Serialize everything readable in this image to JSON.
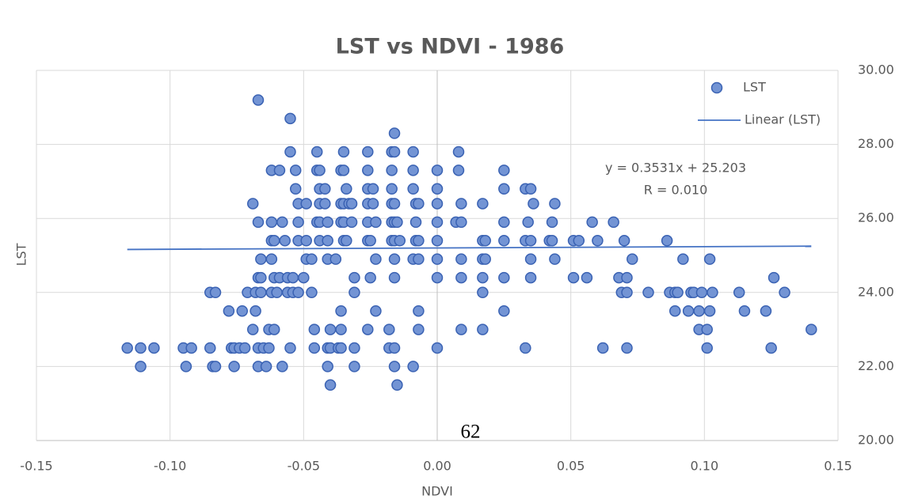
{
  "chart_data": {
    "type": "scatter",
    "title": "LST vs NDVI - 1986",
    "x_label": "NDVI",
    "y_label": "LST",
    "xlim": [
      -0.15,
      0.15
    ],
    "xticks": [
      -0.15,
      {
        "value": -0.1,
        "label": "-0.10"
      },
      -0.05,
      {
        "value": 0,
        "label": "0.00"
      },
      0.05,
      {
        "value": 0.1,
        "label": "0.10"
      },
      0.15
    ],
    "ylim": [
      20,
      30
    ],
    "yticks": [
      {
        "value": 20,
        "label": "20.00"
      },
      {
        "value": 22,
        "label": "22.00"
      },
      {
        "value": 24,
        "label": "24.00"
      },
      {
        "value": 26,
        "label": "26.00"
      },
      {
        "value": 28,
        "label": "28.00"
      },
      {
        "value": 30,
        "label": "30.00"
      }
    ],
    "y_axis_side": "right",
    "grid": true,
    "legend": "top-right",
    "annotations": [
      "y = 0.3531x + 25.203",
      "R = 0.010"
    ],
    "series": [
      {
        "name": "LST",
        "type": "scatter",
        "color": "#7394d4",
        "x": [
          -0.111,
          -0.094,
          -0.084,
          -0.083,
          -0.076,
          -0.067,
          -0.064,
          -0.058,
          -0.041,
          -0.031,
          -0.016,
          -0.009,
          -0.04,
          -0.015,
          -0.116,
          -0.111,
          -0.106,
          -0.095,
          -0.092,
          -0.085,
          -0.077,
          -0.076,
          -0.074,
          -0.072,
          -0.067,
          -0.065,
          -0.063,
          -0.055,
          -0.046,
          -0.041,
          -0.04,
          -0.037,
          -0.036,
          -0.031,
          -0.018,
          -0.016,
          0.0,
          0.033,
          0.062,
          0.071,
          0.101,
          0.125,
          -0.069,
          -0.063,
          -0.061,
          -0.046,
          -0.04,
          -0.036,
          -0.026,
          -0.018,
          -0.007,
          0.009,
          0.017,
          0.098,
          0.101,
          0.14,
          -0.078,
          -0.073,
          -0.068,
          -0.036,
          -0.023,
          -0.007,
          0.025,
          0.089,
          0.094,
          0.098,
          0.102,
          0.115,
          0.123,
          -0.085,
          -0.083,
          -0.071,
          -0.068,
          -0.066,
          -0.062,
          -0.06,
          -0.056,
          -0.054,
          -0.052,
          -0.047,
          -0.031,
          0.017,
          0.069,
          0.071,
          0.079,
          0.087,
          0.089,
          0.09,
          0.095,
          0.096,
          0.099,
          0.103,
          0.113,
          0.13,
          -0.067,
          -0.066,
          -0.061,
          -0.059,
          -0.056,
          -0.054,
          -0.05,
          -0.031,
          -0.025,
          -0.016,
          0.0,
          0.009,
          0.017,
          0.025,
          0.035,
          0.051,
          0.056,
          0.068,
          0.071,
          0.126,
          -0.066,
          -0.062,
          -0.049,
          -0.047,
          -0.041,
          -0.038,
          -0.023,
          -0.016,
          -0.009,
          -0.007,
          0.0,
          0.009,
          0.017,
          0.018,
          0.035,
          0.044,
          0.073,
          0.092,
          0.102,
          -0.062,
          -0.061,
          -0.057,
          -0.052,
          -0.049,
          -0.044,
          -0.041,
          -0.035,
          -0.034,
          -0.026,
          -0.025,
          -0.017,
          -0.016,
          -0.014,
          -0.008,
          -0.007,
          0.0,
          0.017,
          0.018,
          0.025,
          0.033,
          0.035,
          0.042,
          0.043,
          0.051,
          0.053,
          0.06,
          0.07,
          0.086,
          -0.067,
          -0.062,
          -0.058,
          -0.052,
          -0.045,
          -0.044,
          -0.041,
          -0.036,
          -0.035,
          -0.032,
          -0.026,
          -0.023,
          -0.017,
          -0.016,
          -0.015,
          -0.008,
          0.0,
          0.007,
          0.009,
          0.025,
          0.034,
          0.043,
          0.058,
          0.066,
          -0.069,
          -0.052,
          -0.049,
          -0.044,
          -0.042,
          -0.036,
          -0.035,
          -0.033,
          -0.032,
          -0.026,
          -0.024,
          -0.017,
          -0.016,
          -0.008,
          -0.007,
          0.0,
          0.009,
          0.017,
          0.036,
          0.044,
          -0.053,
          -0.044,
          -0.042,
          -0.034,
          -0.026,
          -0.024,
          -0.017,
          -0.009,
          0.0,
          0.025,
          0.033,
          0.035,
          -0.062,
          -0.059,
          -0.053,
          -0.045,
          -0.044,
          -0.036,
          -0.035,
          -0.026,
          -0.017,
          -0.009,
          0.0,
          0.008,
          0.025,
          -0.055,
          -0.045,
          -0.035,
          -0.026,
          -0.017,
          -0.016,
          -0.009,
          0.008,
          -0.016,
          -0.055,
          -0.067
        ],
        "values": [
          22,
          22,
          22,
          22,
          22,
          22,
          22,
          22,
          22,
          22,
          22,
          22,
          21.5,
          21.5,
          22.5,
          22.5,
          22.5,
          22.5,
          22.5,
          22.5,
          22.5,
          22.5,
          22.5,
          22.5,
          22.5,
          22.5,
          22.5,
          22.5,
          22.5,
          22.5,
          22.5,
          22.5,
          22.5,
          22.5,
          22.5,
          22.5,
          22.5,
          22.5,
          22.5,
          22.5,
          22.5,
          22.5,
          23,
          23,
          23,
          23,
          23,
          23,
          23,
          23,
          23,
          23,
          23,
          23,
          23,
          23,
          23.5,
          23.5,
          23.5,
          23.5,
          23.5,
          23.5,
          23.5,
          23.5,
          23.5,
          23.5,
          23.5,
          23.5,
          23.5,
          24,
          24,
          24,
          24,
          24,
          24,
          24,
          24,
          24,
          24,
          24,
          24,
          24,
          24,
          24,
          24,
          24,
          24,
          24,
          24,
          24,
          24,
          24,
          24,
          24,
          24.4,
          24.4,
          24.4,
          24.4,
          24.4,
          24.4,
          24.4,
          24.4,
          24.4,
          24.4,
          24.4,
          24.4,
          24.4,
          24.4,
          24.4,
          24.4,
          24.4,
          24.4,
          24.4,
          24.4,
          24.9,
          24.9,
          24.9,
          24.9,
          24.9,
          24.9,
          24.9,
          24.9,
          24.9,
          24.9,
          24.9,
          24.9,
          24.9,
          24.9,
          24.9,
          24.9,
          24.9,
          24.9,
          24.9,
          25.4,
          25.4,
          25.4,
          25.4,
          25.4,
          25.4,
          25.4,
          25.4,
          25.4,
          25.4,
          25.4,
          25.4,
          25.4,
          25.4,
          25.4,
          25.4,
          25.4,
          25.4,
          25.4,
          25.4,
          25.4,
          25.4,
          25.4,
          25.4,
          25.4,
          25.4,
          25.4,
          25.4,
          25.4,
          25.9,
          25.9,
          25.9,
          25.9,
          25.9,
          25.9,
          25.9,
          25.9,
          25.9,
          25.9,
          25.9,
          25.9,
          25.9,
          25.9,
          25.9,
          25.9,
          25.9,
          25.9,
          25.9,
          25.9,
          25.9,
          25.9,
          25.9,
          25.9,
          26.4,
          26.4,
          26.4,
          26.4,
          26.4,
          26.4,
          26.4,
          26.4,
          26.4,
          26.4,
          26.4,
          26.4,
          26.4,
          26.4,
          26.4,
          26.4,
          26.4,
          26.4,
          26.4,
          26.4,
          26.8,
          26.8,
          26.8,
          26.8,
          26.8,
          26.8,
          26.8,
          26.8,
          26.8,
          26.8,
          26.8,
          26.8,
          27.3,
          27.3,
          27.3,
          27.3,
          27.3,
          27.3,
          27.3,
          27.3,
          27.3,
          27.3,
          27.3,
          27.3,
          27.3,
          27.8,
          27.8,
          27.8,
          27.8,
          27.8,
          27.8,
          27.8,
          27.8,
          28.3,
          28.7,
          29.2
        ]
      },
      {
        "name": "Linear (LST)",
        "type": "line",
        "color": "#4472c4",
        "x": [
          -0.116,
          0.14
        ],
        "values": [
          25.162,
          25.252
        ]
      }
    ]
  },
  "page_number": "62"
}
